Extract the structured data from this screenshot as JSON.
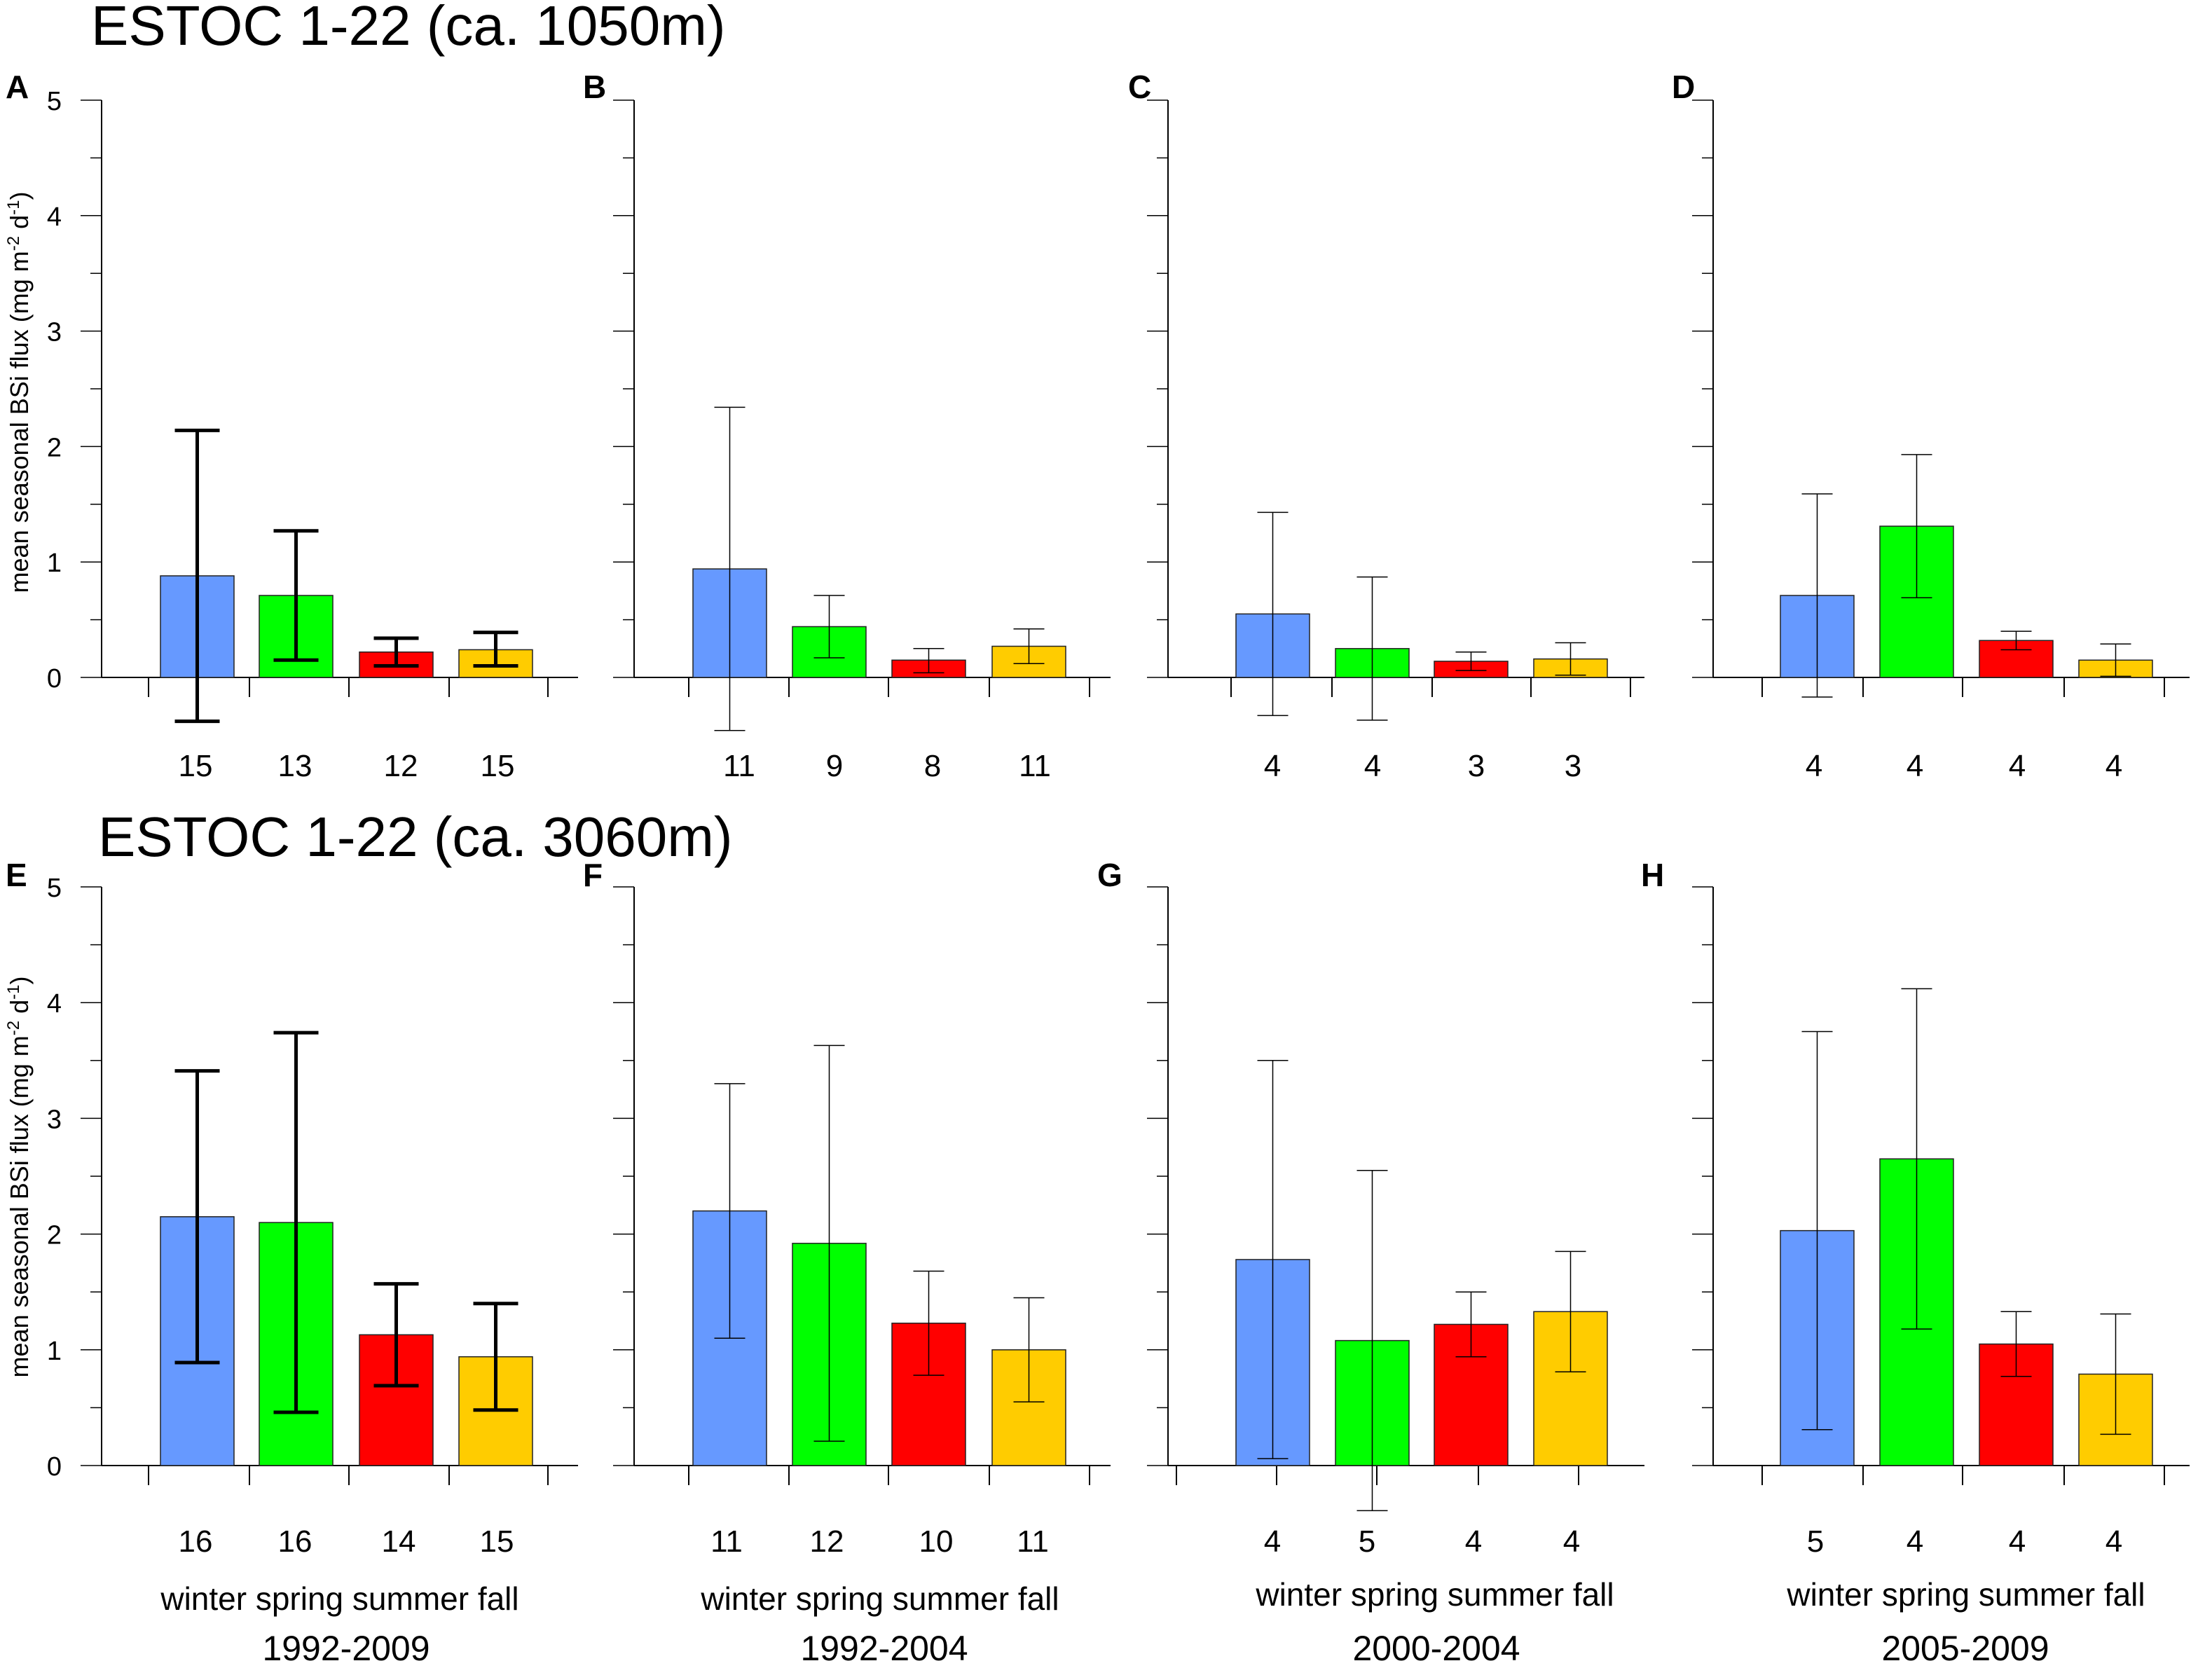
{
  "colors": {
    "winter": "#6699ff",
    "spring": "#00ff00",
    "summer": "#ff0000",
    "fall": "#ffcc00"
  },
  "figure": {
    "row_titles": [
      "ESTOC 1-22  (ca. 1050m)",
      "ESTOC 1-22  (ca. 3060m)"
    ],
    "ylabel": "mean seasonal BSi flux (mg m",
    "ylabel_sup1": "-2",
    "ylabel_mid": " d",
    "ylabel_sup2": "-1",
    "ylabel_end": ")",
    "season_label": "winter spring summer fall",
    "periods": [
      "1992-2009",
      "1992-2004",
      "2000-2004",
      "2005-2009"
    ]
  },
  "chart_data": [
    {
      "panel": "A",
      "type": "bar",
      "depth": "ca. 1050m",
      "period": "1992-2009",
      "categories": [
        "winter",
        "spring",
        "summer",
        "fall"
      ],
      "values": [
        0.88,
        0.71,
        0.22,
        0.24
      ],
      "error_low": [
        -0.38,
        0.15,
        0.1,
        0.1
      ],
      "error_high": [
        2.14,
        1.27,
        0.34,
        0.39
      ],
      "n": [
        "15",
        "13",
        "12",
        "15"
      ],
      "ylim": [
        0,
        5
      ],
      "yticks": [
        "0",
        "1",
        "2",
        "3",
        "4",
        "5"
      ],
      "bold_errorbars": true
    },
    {
      "panel": "B",
      "type": "bar",
      "depth": "ca. 1050m",
      "period": "1992-2004",
      "categories": [
        "winter",
        "spring",
        "summer",
        "fall"
      ],
      "values": [
        0.94,
        0.44,
        0.15,
        0.27
      ],
      "error_low": [
        -0.46,
        0.17,
        0.04,
        0.12
      ],
      "error_high": [
        2.34,
        0.71,
        0.25,
        0.42
      ],
      "n": [
        "11",
        "9",
        "8",
        "11"
      ],
      "ylim": [
        0,
        5
      ],
      "bold_errorbars": false
    },
    {
      "panel": "C",
      "type": "bar",
      "depth": "ca. 1050m",
      "period": "2000-2004",
      "categories": [
        "winter",
        "spring",
        "summer",
        "fall"
      ],
      "values": [
        0.55,
        0.25,
        0.14,
        0.16
      ],
      "error_low": [
        -0.33,
        -0.37,
        0.06,
        0.02
      ],
      "error_high": [
        1.43,
        0.87,
        0.22,
        0.3
      ],
      "n": [
        "4",
        "4",
        "3",
        "3"
      ],
      "ylim": [
        0,
        5
      ],
      "bold_errorbars": false
    },
    {
      "panel": "D",
      "type": "bar",
      "depth": "ca. 1050m",
      "period": "2005-2009",
      "categories": [
        "winter",
        "spring",
        "summer",
        "fall"
      ],
      "values": [
        0.71,
        1.31,
        0.32,
        0.15
      ],
      "error_low": [
        -0.17,
        0.69,
        0.24,
        0.01
      ],
      "error_high": [
        1.59,
        1.93,
        0.4,
        0.29
      ],
      "n": [
        "4",
        "4",
        "4",
        "4"
      ],
      "ylim": [
        0,
        5
      ],
      "bold_errorbars": false
    },
    {
      "panel": "E",
      "type": "bar",
      "depth": "ca. 3060m",
      "period": "1992-2009",
      "categories": [
        "winter",
        "spring",
        "summer",
        "fall"
      ],
      "values": [
        2.15,
        2.1,
        1.13,
        0.94
      ],
      "error_low": [
        0.89,
        0.46,
        0.69,
        0.48
      ],
      "error_high": [
        3.41,
        3.74,
        1.57,
        1.4
      ],
      "n": [
        "16",
        "16",
        "14",
        "15"
      ],
      "ylim": [
        0,
        5
      ],
      "yticks": [
        "0",
        "1",
        "2",
        "3",
        "4",
        "5"
      ],
      "bold_errorbars": true
    },
    {
      "panel": "F",
      "type": "bar",
      "depth": "ca. 3060m",
      "period": "1992-2004",
      "categories": [
        "winter",
        "spring",
        "summer",
        "fall"
      ],
      "values": [
        2.2,
        1.92,
        1.23,
        1.0
      ],
      "error_low": [
        1.1,
        0.21,
        0.78,
        0.55
      ],
      "error_high": [
        3.3,
        3.63,
        1.68,
        1.45
      ],
      "n": [
        "11",
        "12",
        "10",
        "11"
      ],
      "ylim": [
        0,
        5
      ],
      "bold_errorbars": false
    },
    {
      "panel": "G",
      "type": "bar",
      "depth": "ca. 3060m",
      "period": "2000-2004",
      "categories": [
        "winter",
        "spring",
        "summer",
        "fall"
      ],
      "values": [
        1.78,
        1.08,
        1.22,
        1.33
      ],
      "error_low": [
        0.06,
        -0.39,
        0.94,
        0.81
      ],
      "error_high": [
        3.5,
        2.55,
        1.5,
        1.85
      ],
      "n": [
        "4",
        "5",
        "4",
        "4"
      ],
      "ylim": [
        0,
        5
      ],
      "bold_errorbars": false
    },
    {
      "panel": "H",
      "type": "bar",
      "depth": "ca. 3060m",
      "period": "2005-2009",
      "categories": [
        "winter",
        "spring",
        "summer",
        "fall"
      ],
      "values": [
        2.03,
        2.65,
        1.05,
        0.79
      ],
      "error_low": [
        0.31,
        1.18,
        0.77,
        0.27
      ],
      "error_high": [
        3.75,
        4.12,
        1.33,
        1.31
      ],
      "n": [
        "5",
        "4",
        "4",
        "4"
      ],
      "ylim": [
        0,
        5
      ],
      "bold_errorbars": false
    }
  ]
}
